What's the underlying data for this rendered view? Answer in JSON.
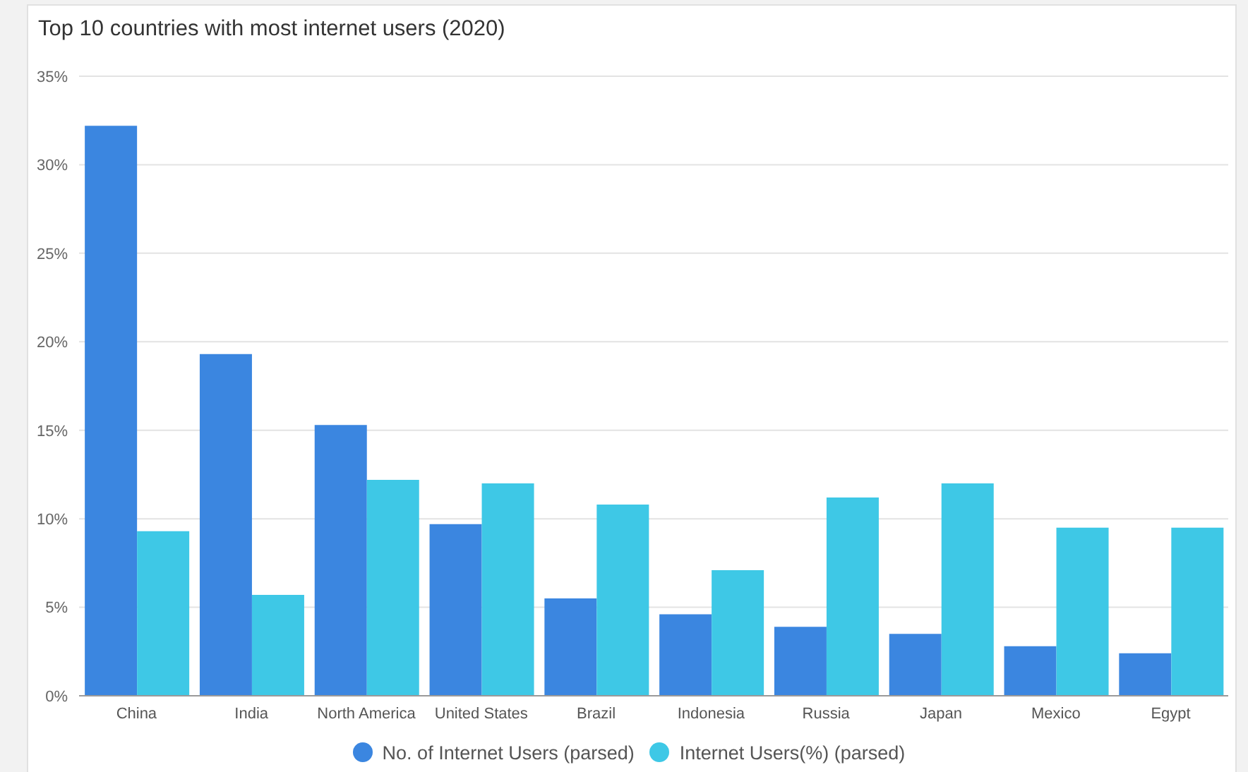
{
  "chart_data": {
    "type": "bar",
    "title": "Top 10 countries with most internet users (2020)",
    "categories": [
      "China",
      "India",
      "North America",
      "United States",
      "Brazil",
      "Indonesia",
      "Russia",
      "Japan",
      "Mexico",
      "Egypt"
    ],
    "series": [
      {
        "name": "No. of Internet Users (parsed)",
        "color": "#3b86e0",
        "values": [
          32.2,
          19.3,
          15.3,
          9.7,
          5.5,
          4.6,
          3.9,
          3.5,
          2.8,
          2.4
        ]
      },
      {
        "name": "Internet Users(%) (parsed)",
        "color": "#3ec8e6",
        "values": [
          9.3,
          5.7,
          12.2,
          12.0,
          10.8,
          7.1,
          11.2,
          12.0,
          9.5,
          9.5
        ]
      }
    ],
    "ylim": [
      0,
      35
    ],
    "yticks": [
      {
        "value": 0,
        "label": "0%"
      },
      {
        "value": 5,
        "label": "5%"
      },
      {
        "value": 10,
        "label": "10%"
      },
      {
        "value": 15,
        "label": "15%"
      },
      {
        "value": 20,
        "label": "20%"
      },
      {
        "value": 25,
        "label": "25%"
      },
      {
        "value": 30,
        "label": "30%"
      },
      {
        "value": 35,
        "label": "35%"
      }
    ],
    "grid": "y",
    "legend": "bottom"
  }
}
